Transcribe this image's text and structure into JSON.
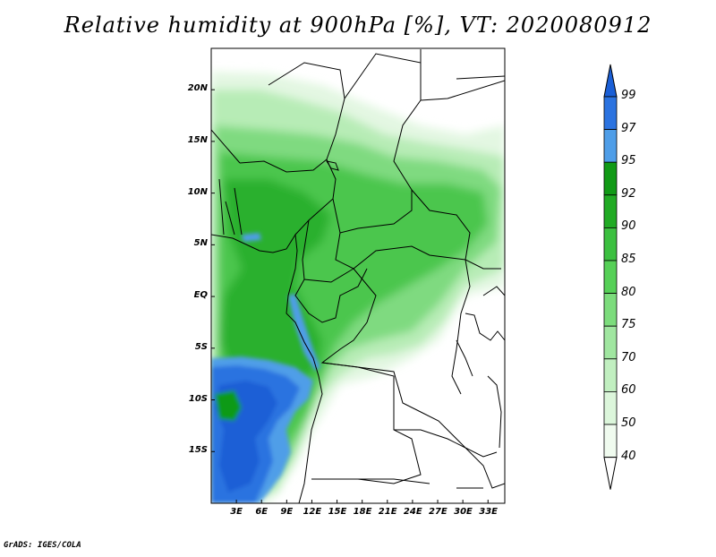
{
  "title": "Relative humidity at 900hPa [%], VT: 2020080912",
  "credit": "GrADS: IGES/COLA",
  "map": {
    "lon_range": [
      0,
      35
    ],
    "lat_range": [
      -20,
      24
    ],
    "lat_ticks": [
      {
        "value": 20,
        "label": "20N"
      },
      {
        "value": 15,
        "label": "15N"
      },
      {
        "value": 10,
        "label": "10N"
      },
      {
        "value": 5,
        "label": "5N"
      },
      {
        "value": 0,
        "label": "EQ"
      },
      {
        "value": -5,
        "label": "5S"
      },
      {
        "value": -10,
        "label": "10S"
      },
      {
        "value": -15,
        "label": "15S"
      }
    ],
    "lon_ticks": [
      {
        "value": 3,
        "label": "3E"
      },
      {
        "value": 6,
        "label": "6E"
      },
      {
        "value": 9,
        "label": "9E"
      },
      {
        "value": 12,
        "label": "12E"
      },
      {
        "value": 15,
        "label": "15E"
      },
      {
        "value": 18,
        "label": "18E"
      },
      {
        "value": 21,
        "label": "21E"
      },
      {
        "value": 24,
        "label": "24E"
      },
      {
        "value": 27,
        "label": "27E"
      },
      {
        "value": 30,
        "label": "30E"
      },
      {
        "value": 33,
        "label": "33E"
      }
    ]
  },
  "colorbar": {
    "levels": [
      "99",
      "97",
      "95",
      "92",
      "90",
      "85",
      "80",
      "75",
      "70",
      "60",
      "50",
      "40"
    ],
    "colors": {
      "above_99": "#1a5fd6",
      "97_99": "#2b73e0",
      "95_97": "#4f9ee8",
      "92_95": "#119a16",
      "90_92": "#21ab24",
      "85_90": "#3cc040",
      "80_85": "#56d057",
      "75_80": "#7cdc7c",
      "70_75": "#a0e6a0",
      "60_70": "#c1efc0",
      "50_60": "#dcf6db",
      "40_50": "#f0fbef",
      "below_40": "#ffffff"
    }
  }
}
